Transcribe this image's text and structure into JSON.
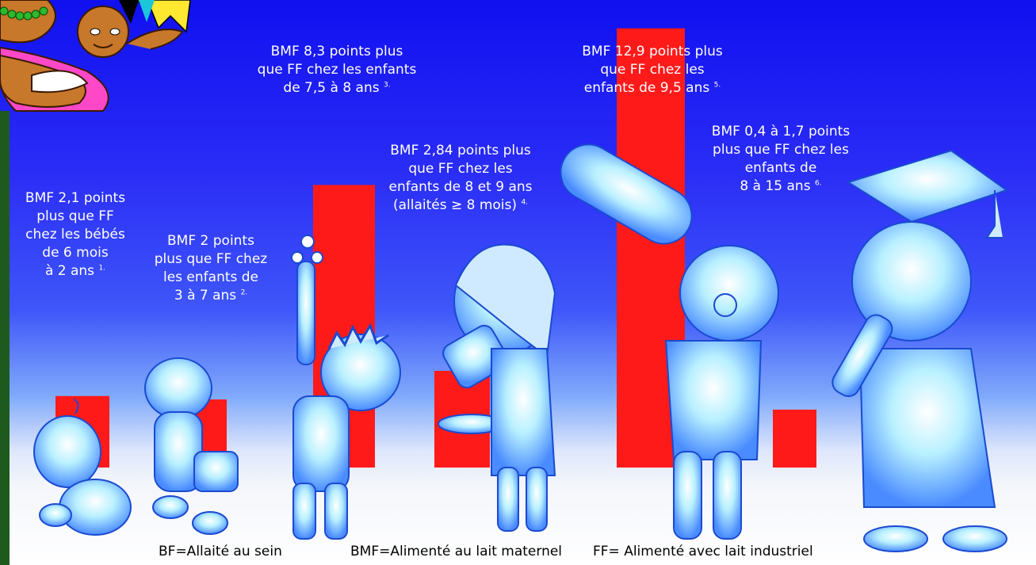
{
  "chart_data": {
    "type": "bar",
    "categories": [
      "6 mois à 2 ans",
      "3 à 7 ans",
      "7,5 à 8 ans",
      "8 et 9 ans",
      "9,5 ans",
      "8 à 15 ans"
    ],
    "values": [
      2.1,
      2,
      8.3,
      2.84,
      12.9,
      1.7
    ],
    "ylim": [
      0,
      13.5
    ],
    "bar_color": "#ff1a1a",
    "grid": false,
    "legend_position": "bottom",
    "annotations": [
      {
        "line1": "BMF 2,1 points",
        "line2": "plus que FF",
        "line3": "chez les bébés",
        "line4": "de 6 mois",
        "line5": "à 2 ans",
        "ref": "1."
      },
      {
        "line1": "BMF 2 points",
        "line2": "plus que FF chez",
        "line3": "les enfants de",
        "line4": "3 à 7 ans",
        "ref": "2."
      },
      {
        "line1": "BMF 8,3 points plus",
        "line2": "que FF chez les enfants",
        "line3": "de 7,5 à 8 ans",
        "ref": "3."
      },
      {
        "line1": "BMF 2,84 points plus",
        "line2": "que FF chez les",
        "line3": "enfants de 8 et 9 ans",
        "line4": "(allaités ≥ 8 mois)",
        "ref": "4."
      },
      {
        "line1": "BMF 12,9 points plus",
        "line2": "que FF chez les",
        "line3": "enfants de 9,5 ans",
        "ref": "5."
      },
      {
        "line1": "BMF 0,4 à 1,7 points",
        "line2": "plus que FF chez les",
        "line3": "enfants de",
        "line4": "8 à 15 ans",
        "ref": "6."
      }
    ],
    "legend": {
      "bf": "BF=Allaité au sein",
      "bmf": "BMF=Alimenté au lait maternel",
      "ff": "FF= Alimenté avec lait industriel"
    }
  },
  "colors": {
    "sky_top": "#1010f0",
    "floor": "#ffffff",
    "character_tint": "#a8e8ff",
    "side_strip": "#1e5a1e"
  },
  "illustrations": [
    "mother-and-baby-drawing",
    "crawling-baby",
    "toddler",
    "boy-with-test-tube",
    "girl-with-microscope",
    "boy-with-telescope",
    "graduate-with-diploma"
  ]
}
